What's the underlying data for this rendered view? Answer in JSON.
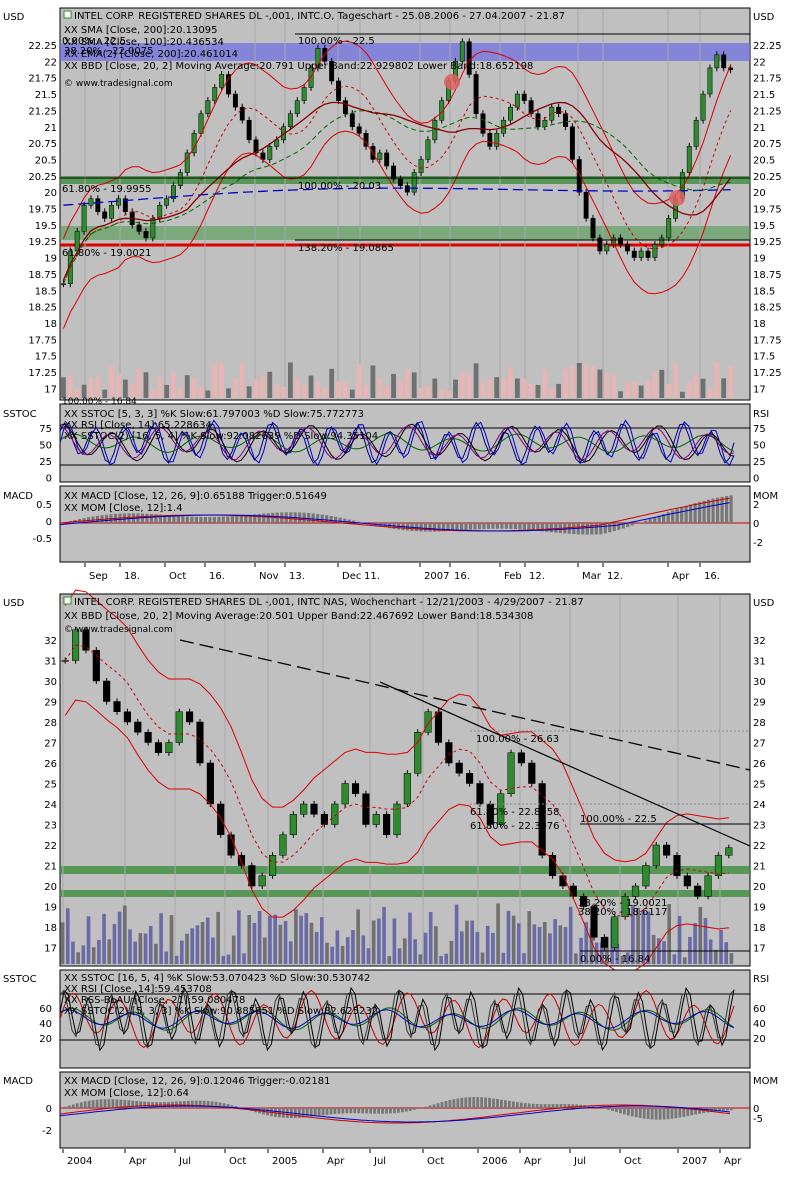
{
  "top": {
    "unit_label": "USD",
    "title": "INTEL CORP. REGISTERED SHARES DL -,001, INTC.O, Tageschart - 25.08.2006 - 27.04.2007 - 21.87",
    "legend": [
      {
        "text": "XX SMA [Close, 200]:20.13095",
        "color": "#0000cc"
      },
      {
        "text": "XX SMA [Close, 100]:20.436534",
        "color": "#006600"
      },
      {
        "text": "XX EMA(2) [Close, 200]:20.461014",
        "color": "#880000"
      },
      {
        "text": "XX BBD [Close, 20, 2] Moving Average:20.791 Upper Band:22.929802 Lower Band:18.652198",
        "color": "#cc0000"
      }
    ],
    "source": "© www.tradesignal.com",
    "fib_labels": [
      "100.00% - 22.5",
      "38.20% - 22.0075",
      "100.00% - 20.03",
      "61.80% - 19.9955",
      "138.20% - 19.0865",
      "61.80% - 19.0021",
      "100.00% - 16.84",
      "0.00% - 22.5"
    ],
    "y_ticks": [
      "22.25",
      "22",
      "21.75",
      "21.5",
      "21.25",
      "21",
      "20.75",
      "20.5",
      "20.25",
      "20",
      "19.75",
      "19.5",
      "19.25",
      "19",
      "18.75",
      "18.5",
      "18.25",
      "18",
      "17.75",
      "17.5",
      "17.25",
      "17"
    ],
    "x_ticks": [
      "Sep",
      "18.",
      "Oct",
      "16.",
      "Nov",
      "13.",
      "Dec",
      "11.",
      "2007",
      "16.",
      "Feb",
      "12.",
      "Mar",
      "12.",
      "Apr",
      "16."
    ],
    "stoch_label": "SSTOC",
    "rsi_label": "RSI",
    "stoch_legend": [
      {
        "text": "XX SSTOC [5, 3, 3] %K Slow:61.797003 %D Slow:75.772773",
        "color": "#000080"
      },
      {
        "text": "XX RSI [Close, 14]:65.228634",
        "color": "#006600"
      },
      {
        "text": "XX SSTOC(2) [16, 5, 4] %K Slow:92.082639 %D Slow:94.35104",
        "color": "#000"
      }
    ],
    "stoch_ticks": [
      "75",
      "50",
      "25",
      "0"
    ],
    "macd_label": "MACD",
    "mom_label": "MOM",
    "macd_legend": [
      {
        "text": "XX MACD [Close, 12, 26, 9]:0.65188 Trigger:0.51649",
        "color": "#cc0000"
      },
      {
        "text": "XX MOM [Close, 12]:1.4",
        "color": "#777"
      }
    ],
    "macd_ticks": [
      "0.5",
      "0",
      "-0.5"
    ],
    "mom_ticks": [
      "2",
      "0",
      "-2"
    ]
  },
  "bottom": {
    "unit_label": "USD",
    "title": "INTEL CORP. REGISTERED SHARES DL -,001, INTC NAS, Wochenchart - 12/21/2003 - 4/29/2007 - 21.87",
    "legend": [
      {
        "text": "XX BBD [Close, 20, 2] Moving Average:20.501 Upper Band:22.467692 Lower Band:18.534308",
        "color": "#cc0000"
      }
    ],
    "source": "© www.tradesignal.com",
    "fib_labels": [
      "100.00% - 26.63",
      "61.80% - 22.8558",
      "61.80% - 22.3076",
      "100.00% - 22.5",
      "38.20% - 19.0021",
      "38.20% - 18.6117",
      "0.00% - 16.84"
    ],
    "y_ticks": [
      "32",
      "31",
      "30",
      "29",
      "28",
      "27",
      "26",
      "25",
      "24",
      "23",
      "22",
      "21",
      "20",
      "19",
      "18",
      "17"
    ],
    "x_ticks": [
      "2004",
      "Apr",
      "Jul",
      "Oct",
      "2005",
      "Apr",
      "Jul",
      "Oct",
      "2006",
      "Apr",
      "Jul",
      "Oct",
      "2007",
      "Apr"
    ],
    "stoch_label": "SSTOC",
    "rsi_label": "RSI",
    "stoch_legend": [
      {
        "text": "XX SSTOC [16, 5, 4] %K Slow:53.070423 %D Slow:30.530742",
        "color": "#cc0000"
      },
      {
        "text": "XX RSI [Close, 14]:59.453708",
        "color": "#006600"
      },
      {
        "text": "XX RSS-BLAU [Close, 21]:59.080478",
        "color": "#0000cc"
      },
      {
        "text": "XX SSTOC(2) [5, 3, 3] %K Slow:90.885851 %D Slow:82.625232",
        "color": "#000"
      }
    ],
    "stoch_ticks": [
      "60",
      "40",
      "20"
    ],
    "macd_label": "MACD",
    "mom_label": "MOM",
    "macd_legend": [
      {
        "text": "XX MACD [Close, 12, 26, 9]:0.12046 Trigger:-0.02181",
        "color": "#cc0000"
      },
      {
        "text": "XX MOM [Close, 12]:0.64",
        "color": "#777"
      }
    ],
    "macd_ticks": [
      "0",
      "-2"
    ],
    "mom_ticks": [
      "0",
      "-5"
    ]
  },
  "chart_data": [
    {
      "type": "candlestick",
      "title": "INTEL CORP. REGISTERED SHARES DL -,001, INTC.O, Tageschart - 25.08.2006 - 27.04.2007 - 21.87",
      "ylabel": "USD",
      "ylim": [
        16.75,
        22.5
      ],
      "closes": [
        18.6,
        19.1,
        19.4,
        19.8,
        19.9,
        19.7,
        19.6,
        19.8,
        19.9,
        19.7,
        19.5,
        19.4,
        19.3,
        19.6,
        19.8,
        19.9,
        20.1,
        20.3,
        20.6,
        20.9,
        21.2,
        21.4,
        21.6,
        21.8,
        21.5,
        21.3,
        21.1,
        20.8,
        20.6,
        20.5,
        20.7,
        20.8,
        21.0,
        21.2,
        21.4,
        21.6,
        21.9,
        22.2,
        22.0,
        21.7,
        21.4,
        21.2,
        21.0,
        20.9,
        20.7,
        20.5,
        20.6,
        20.4,
        20.2,
        20.1,
        20.0,
        20.3,
        20.5,
        20.8,
        21.1,
        21.4,
        21.7,
        22.0,
        22.3,
        21.8,
        21.2,
        20.9,
        20.7,
        20.9,
        21.1,
        21.3,
        21.5,
        21.4,
        21.2,
        21.0,
        21.1,
        21.3,
        21.2,
        21.0,
        20.5,
        20.0,
        19.6,
        19.3,
        19.1,
        19.2,
        19.3,
        19.2,
        19.1,
        19.0,
        19.1,
        19.0,
        19.2,
        19.3,
        19.6,
        19.9,
        20.3,
        20.7,
        21.1,
        21.5,
        21.9,
        22.1,
        21.9,
        21.87
      ],
      "volume_ylim": [
        0,
        100
      ],
      "indicators": [
        "SMA 200",
        "SMA 100",
        "EMA(2) 200",
        "Bollinger 20,2"
      ]
    },
    {
      "type": "candlestick",
      "title": "INTEL CORP. REGISTERED SHARES DL -,001, INTC NAS, Wochenchart - 12/21/2003 - 4/29/2007 - 21.87",
      "ylabel": "USD",
      "ylim": [
        16.5,
        33
      ],
      "closes": [
        31.0,
        32.5,
        31.5,
        30.0,
        29.0,
        28.5,
        28.0,
        27.5,
        27.0,
        26.5,
        27.0,
        28.5,
        28.0,
        26.0,
        24.0,
        22.5,
        21.5,
        21.0,
        20.0,
        20.5,
        21.5,
        22.5,
        23.5,
        24.0,
        23.5,
        23.0,
        24.0,
        25.0,
        24.5,
        23.0,
        23.5,
        22.5,
        24.0,
        25.5,
        27.5,
        28.5,
        27.0,
        26.0,
        25.5,
        25.0,
        24.0,
        23.0,
        24.5,
        26.5,
        26.0,
        25.0,
        21.5,
        20.5,
        20.0,
        19.5,
        19.0,
        17.5,
        17.0,
        18.5,
        19.5,
        20.0,
        21.0,
        22.0,
        21.5,
        20.5,
        20.0,
        19.5,
        20.5,
        21.5,
        21.87
      ]
    }
  ]
}
